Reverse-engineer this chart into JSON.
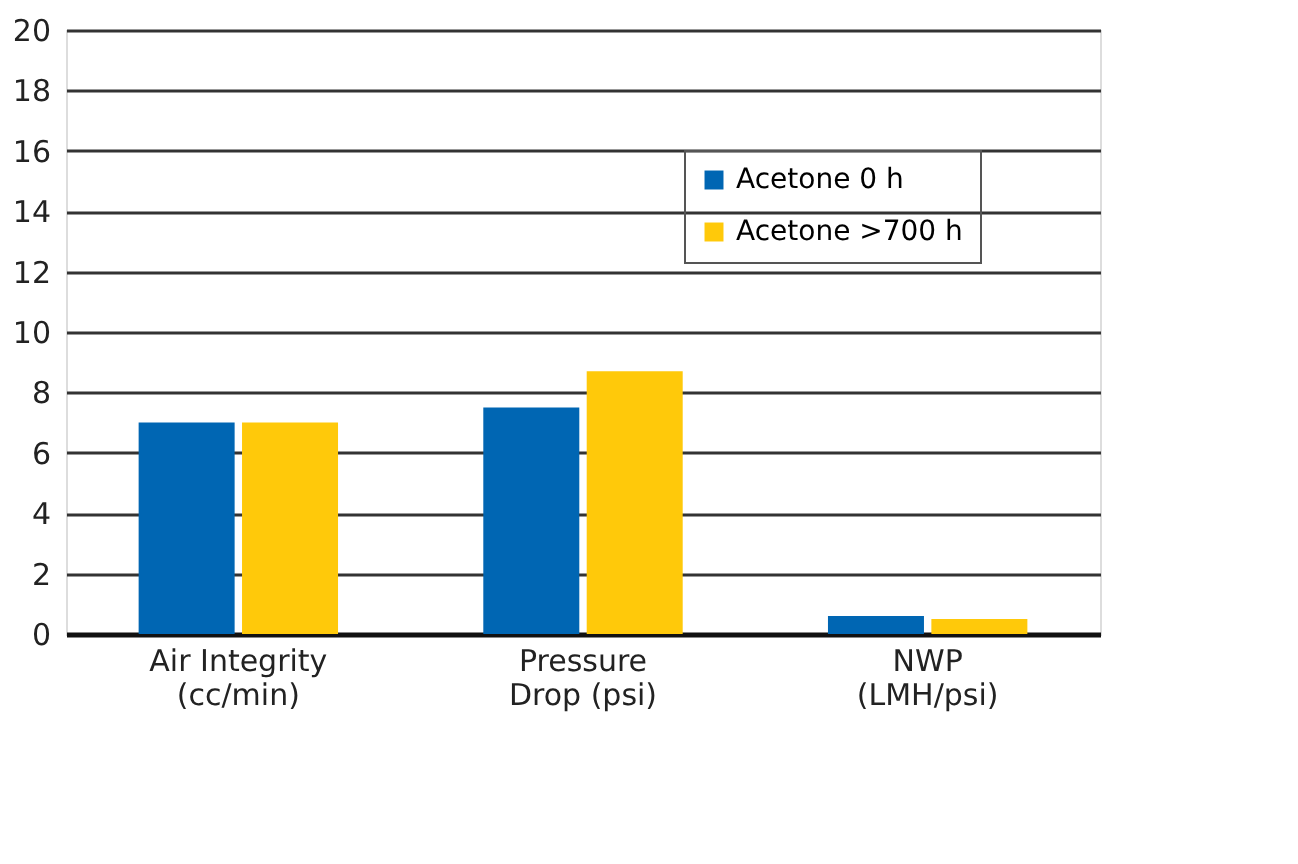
{
  "chart_data": {
    "type": "bar",
    "categories": [
      "Air Integrity\n(cc/min)",
      "Pressure\nDrop (psi)",
      "NWP\n(LMH/psi)"
    ],
    "series": [
      {
        "name": "Acetone 0 h",
        "color": "#0066b3",
        "values": [
          7.0,
          7.5,
          0.6
        ]
      },
      {
        "name": "Acetone >700 h",
        "color": "#ffc90a",
        "values": [
          7.0,
          8.7,
          0.5
        ]
      }
    ],
    "ylim": [
      0,
      20
    ],
    "yticks": [
      0,
      2,
      4,
      6,
      8,
      10,
      12,
      14,
      16,
      18,
      20
    ],
    "grid": "y",
    "legend": "top right"
  }
}
